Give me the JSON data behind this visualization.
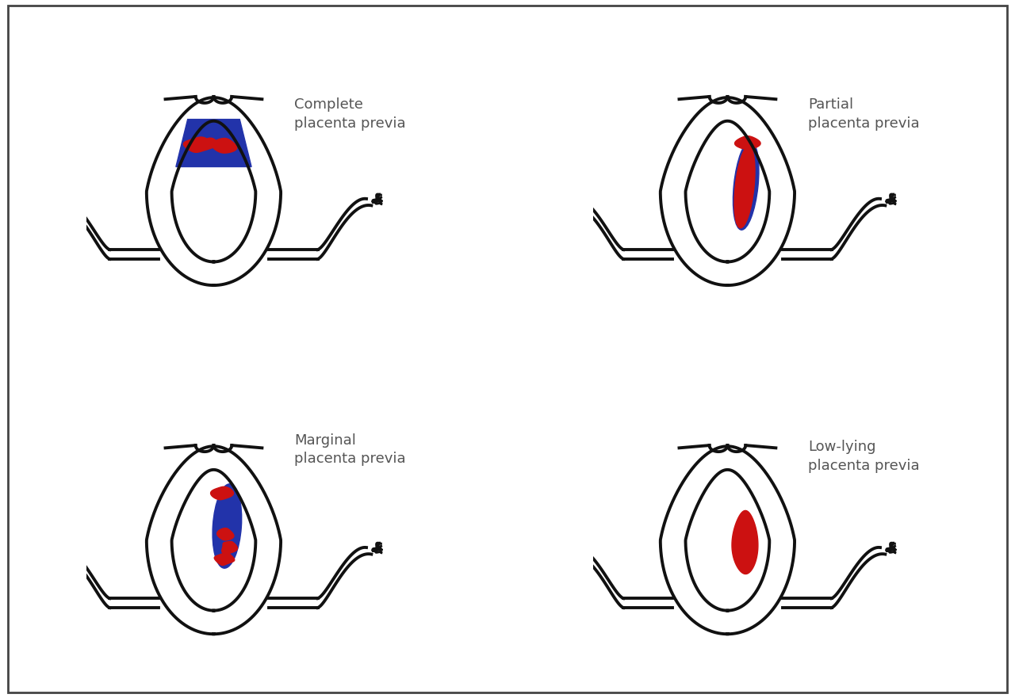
{
  "background_color": "#ffffff",
  "border_color": "#444444",
  "uterus_line_color": "#111111",
  "uterus_fill_color": "#ffffff",
  "placenta_blue": "#2233aa",
  "placenta_red": "#cc1111",
  "text_color": "#555555",
  "labels": [
    "Complete\nplacenta previa",
    "Partial\nplacenta previa",
    "Marginal\nplacenta previa",
    "Low-lying\nplacenta previa"
  ],
  "label_fontsize": 13,
  "line_width": 2.8
}
